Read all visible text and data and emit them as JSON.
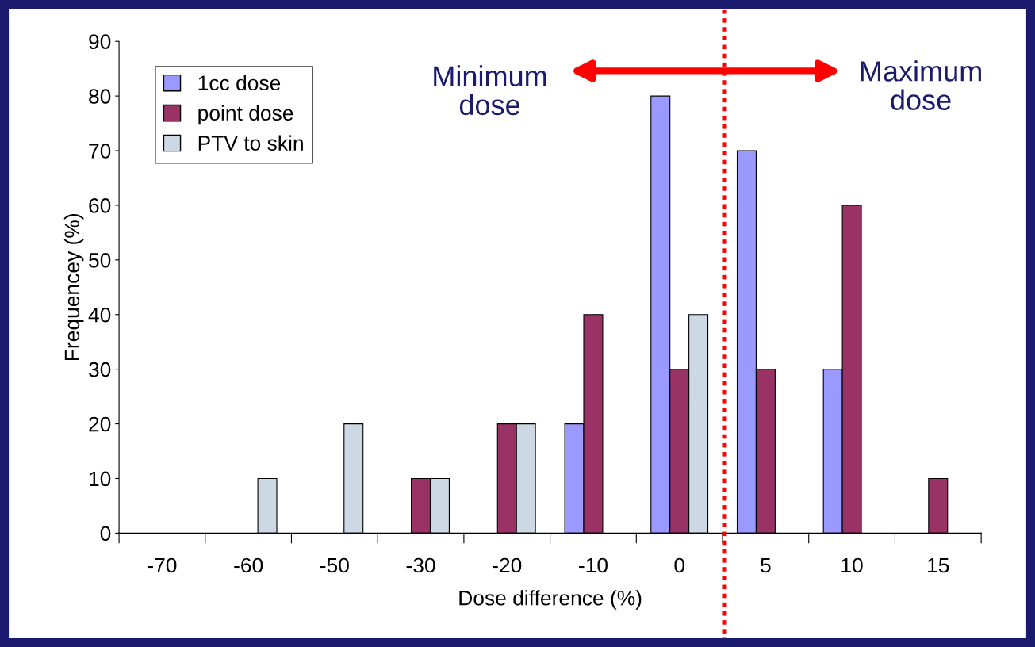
{
  "chart_data": {
    "type": "bar",
    "categories": [
      "-70",
      "-60",
      "-50",
      "-30",
      "-20",
      "-10",
      "0",
      "5",
      "10",
      "15"
    ],
    "series": [
      {
        "name": "1cc dose",
        "color": "#9999ff",
        "values": [
          null,
          null,
          null,
          null,
          null,
          20,
          80,
          70,
          30,
          null
        ]
      },
      {
        "name": "point dose",
        "color": "#993366",
        "values": [
          null,
          null,
          null,
          10,
          20,
          40,
          30,
          30,
          60,
          10
        ]
      },
      {
        "name": "PTV to skin",
        "color": "#ccd8e4",
        "values": [
          null,
          10,
          20,
          10,
          20,
          null,
          40,
          null,
          null,
          null
        ]
      }
    ],
    "xlabel": "Dose difference (%)",
    "ylabel": "Frequencey (%)",
    "ylim": [
      0,
      90
    ],
    "yticks": [
      0,
      10,
      20,
      30,
      40,
      50,
      60,
      70,
      80,
      90
    ],
    "annotations": [
      "Minimum\ndose",
      "Maximum\ndose"
    ],
    "legend": "top left",
    "grid": false
  }
}
